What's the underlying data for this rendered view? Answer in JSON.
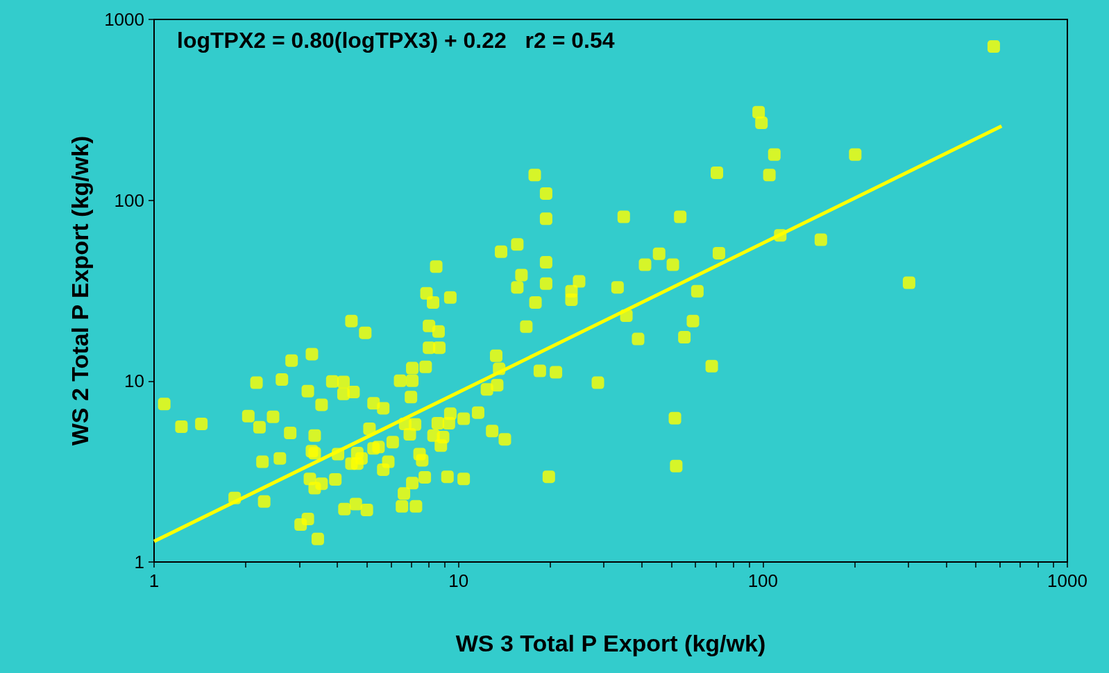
{
  "chart_data": {
    "type": "scatter",
    "xlabel": "WS 3 Total P Export (kg/wk)",
    "ylabel": "WS 2 Total P Export (kg/wk)",
    "annotations": [
      "logTPX2 = 0.80(logTPX3) + 0.22   r2 = 0.54"
    ],
    "log": "xy",
    "grid": false,
    "marker": "square",
    "xlim": [
      1,
      1000
    ],
    "ylim": [
      1,
      1000
    ],
    "xticks": [
      1,
      {
        "value": 2,
        "label": null
      },
      {
        "value": 3,
        "label": null
      },
      {
        "value": 4,
        "label": null
      },
      {
        "value": 5,
        "label": null
      },
      {
        "value": 6,
        "label": null
      },
      {
        "value": 7,
        "label": null
      },
      {
        "value": 8,
        "label": null
      },
      {
        "value": 9,
        "label": null
      },
      10,
      {
        "value": 20,
        "label": null
      },
      {
        "value": 30,
        "label": null
      },
      {
        "value": 40,
        "label": null
      },
      {
        "value": 50,
        "label": null
      },
      {
        "value": 60,
        "label": null
      },
      {
        "value": 70,
        "label": null
      },
      {
        "value": 80,
        "label": null
      },
      {
        "value": 90,
        "label": null
      },
      100,
      {
        "value": 200,
        "label": null
      },
      {
        "value": 300,
        "label": null
      },
      {
        "value": 400,
        "label": null
      },
      {
        "value": 500,
        "label": null
      },
      {
        "value": 600,
        "label": null
      },
      {
        "value": 700,
        "label": null
      },
      {
        "value": 800,
        "label": null
      },
      {
        "value": 900,
        "label": null
      },
      1000
    ],
    "yticks": [
      1,
      10,
      100,
      1000
    ],
    "series": [
      {
        "color": "#ffff00",
        "x": [
          1.08,
          1.23,
          1.43,
          1.84,
          2.04,
          2.17,
          2.22,
          2.27,
          2.3,
          2.46,
          2.59,
          2.63,
          2.8,
          2.83,
          3.03,
          3.2,
          3.2,
          3.25,
          3.3,
          3.3,
          3.37,
          3.37,
          3.37,
          3.45,
          3.55,
          3.55,
          3.85,
          3.94,
          4.02,
          4.19,
          4.19,
          4.22,
          4.45,
          4.45,
          4.52,
          4.6,
          4.65,
          4.65,
          4.8,
          4.94,
          5.0,
          5.1,
          5.26,
          5.26,
          5.46,
          5.66,
          5.66,
          5.88,
          6.08,
          6.43,
          6.52,
          6.62,
          6.68,
          6.92,
          6.98,
          7.05,
          7.05,
          7.05,
          7.2,
          7.25,
          7.45,
          7.6,
          7.75,
          7.8,
          7.85,
          8.0,
          8.0,
          8.25,
          8.28,
          8.45,
          8.55,
          8.6,
          8.65,
          8.75,
          8.9,
          9.2,
          9.3,
          9.4,
          9.4,
          10.4,
          10.4,
          11.6,
          12.4,
          12.9,
          13.3,
          13.4,
          13.6,
          13.8,
          14.2,
          15.6,
          15.6,
          16.1,
          16.7,
          17.8,
          17.9,
          18.5,
          19.4,
          19.4,
          19.4,
          19.4,
          19.8,
          20.9,
          23.5,
          23.5,
          24.9,
          28.7,
          33.3,
          34.9,
          35.6,
          38.9,
          41,
          45.6,
          50.6,
          51.4,
          51.9,
          53.5,
          55.2,
          58.9,
          60.9,
          67.9,
          70.6,
          71.7,
          96.8,
          98.9,
          105,
          109,
          114,
          155,
          201,
          302,
          573
        ],
        "values": [
          7.47,
          5.6,
          5.8,
          2.26,
          6.4,
          9.8,
          5.56,
          3.58,
          2.16,
          6.35,
          3.74,
          10.2,
          5.17,
          13,
          1.61,
          8.8,
          1.73,
          2.88,
          14.1,
          4.1,
          5,
          2.56,
          3.99,
          1.34,
          7.4,
          2.71,
          9.96,
          2.86,
          3.95,
          9.9,
          8.5,
          1.96,
          21.5,
          3.5,
          8.7,
          2.09,
          3.5,
          4,
          3.74,
          18.5,
          1.94,
          5.45,
          7.55,
          4.25,
          4.32,
          7.08,
          3.24,
          3.58,
          4.6,
          10.05,
          2.03,
          2.39,
          5.8,
          5.08,
          8.17,
          10.05,
          11.8,
          2.73,
          5.76,
          2.03,
          3.95,
          3.65,
          2.94,
          12,
          30.6,
          20.2,
          15.3,
          27.2,
          5,
          43,
          5.85,
          18.8,
          15.3,
          4.4,
          4.9,
          2.96,
          5.85,
          29,
          6.6,
          6.2,
          2.88,
          6.7,
          9,
          5.3,
          13.8,
          9.5,
          11.7,
          52,
          4.77,
          57,
          33,
          38.6,
          20,
          138,
          27.2,
          11.4,
          109,
          79,
          45.4,
          34.6,
          2.96,
          11.2,
          31.4,
          28.2,
          35.6,
          9.8,
          33,
          81,
          23,
          17.1,
          44,
          50.6,
          44,
          6.24,
          3.39,
          81,
          17.5,
          21.5,
          31.4,
          12.1,
          142,
          51,
          307,
          268,
          138,
          179,
          64,
          60.5,
          179,
          35,
          708
        ]
      },
      {
        "type": "line",
        "color": "#ffff00",
        "x": [
          1,
          608
        ],
        "values": [
          1.3,
          257
        ],
        "marker": "none"
      }
    ]
  }
}
